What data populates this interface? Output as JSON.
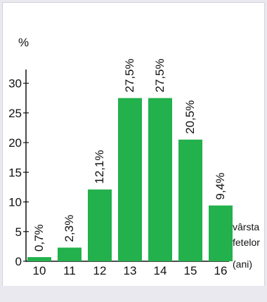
{
  "chart_data": {
    "type": "bar",
    "ylabel": "%",
    "xlabel_lines": [
      "vârsta",
      "fetelor",
      "(ani)"
    ],
    "categories": [
      "10",
      "11",
      "12",
      "13",
      "14",
      "15",
      "16"
    ],
    "values": [
      0.7,
      2.3,
      12.1,
      27.5,
      27.5,
      20.5,
      9.4
    ],
    "data_labels": [
      "0,7%",
      "2,3%",
      "12,1%",
      "27,5%",
      "27,5%",
      "20,5%",
      "9,4%"
    ],
    "y_ticks": [
      0,
      5,
      10,
      15,
      20,
      25,
      30
    ],
    "ylim": [
      0,
      30
    ],
    "grid": false,
    "bar_color": "#22b14c"
  }
}
